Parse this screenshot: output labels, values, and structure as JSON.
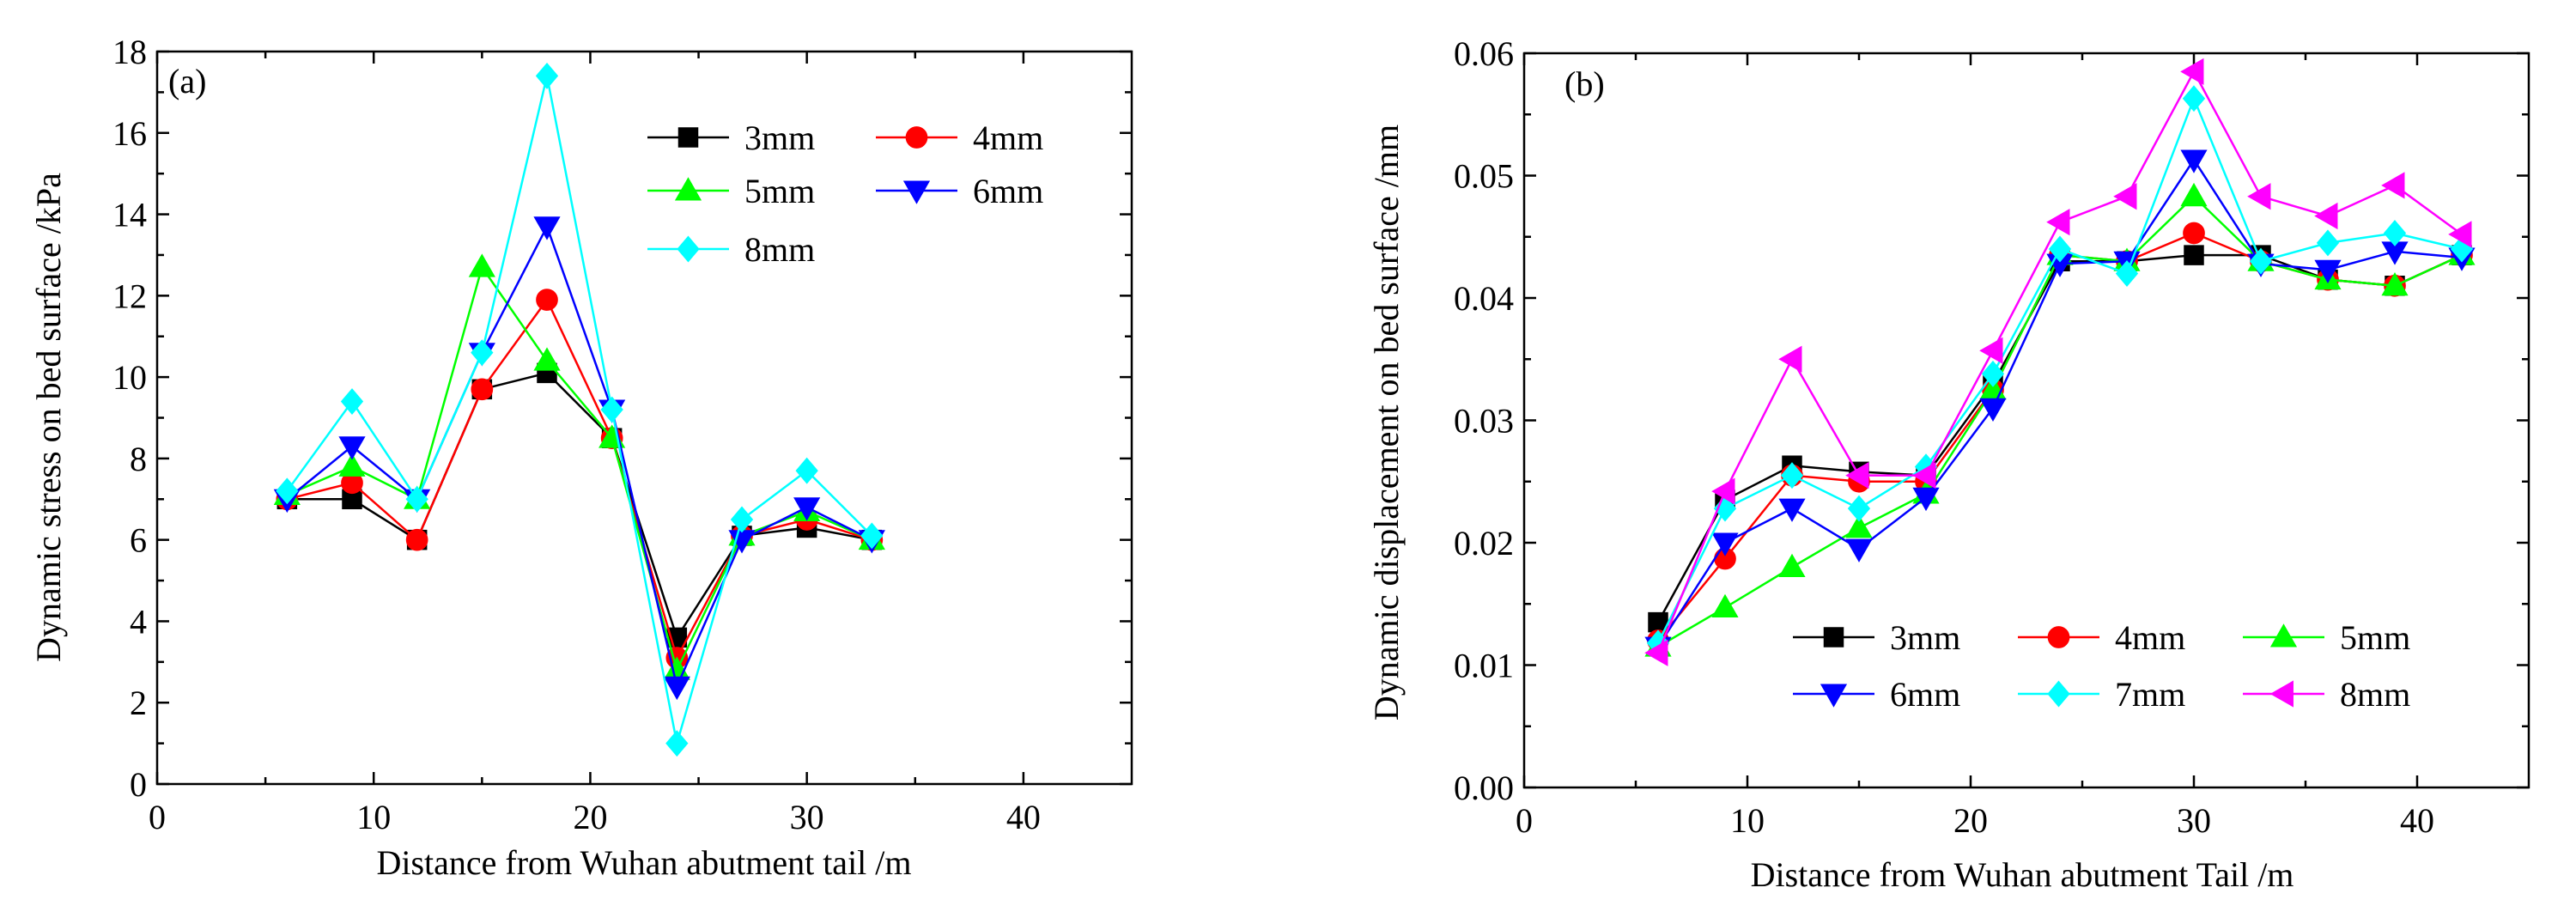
{
  "chart_data": [
    {
      "type": "line",
      "panel_label": "(a)",
      "xlabel": "Distance from Wuhan abutment tail /m",
      "ylabel": "Dynamic stress on bed surface /kPa",
      "xlim": [
        0,
        45
      ],
      "ylim": [
        0,
        18
      ],
      "xticks": [
        0,
        10,
        20,
        30,
        40
      ],
      "xtick_labels": [
        "0",
        "10",
        "20",
        "30",
        "40"
      ],
      "yticks": [
        0,
        2,
        4,
        6,
        8,
        10,
        12,
        14,
        16,
        18
      ],
      "ytick_labels": [
        "0",
        "2",
        "4",
        "6",
        "8",
        "10",
        "12",
        "14",
        "16",
        "18"
      ],
      "legend_position": "top-right",
      "legend_columns": 2,
      "x": [
        6,
        9,
        12,
        15,
        18,
        21,
        24,
        27,
        30,
        33
      ],
      "series": [
        {
          "name": "3mm",
          "color": "#000000",
          "marker": "square",
          "values": [
            7.0,
            7.0,
            6.0,
            9.7,
            10.1,
            8.5,
            3.6,
            6.1,
            6.3,
            6.0
          ]
        },
        {
          "name": "4mm",
          "color": "#ff0000",
          "marker": "circle",
          "values": [
            7.0,
            7.4,
            6.0,
            9.7,
            11.9,
            8.5,
            3.1,
            6.1,
            6.5,
            6.0
          ]
        },
        {
          "name": "5mm",
          "color": "#00ff00",
          "marker": "triangle-up",
          "values": [
            7.1,
            7.8,
            7.0,
            12.7,
            10.4,
            8.5,
            2.8,
            6.1,
            6.7,
            6.0
          ]
        },
        {
          "name": "6mm",
          "color": "#0000ff",
          "marker": "triangle-down",
          "values": [
            7.0,
            8.3,
            7.0,
            10.6,
            13.7,
            9.2,
            2.4,
            6.0,
            6.8,
            6.0
          ]
        },
        {
          "name": "8mm",
          "color": "#00ffff",
          "marker": "diamond",
          "values": [
            7.2,
            9.4,
            7.0,
            10.6,
            17.4,
            9.2,
            1.0,
            6.5,
            7.7,
            6.1
          ]
        }
      ]
    },
    {
      "type": "line",
      "panel_label": "(b)",
      "xlabel": "Distance from Wuhan abutment Tail /m",
      "ylabel": "Dynamic displacement on bed surface /mm",
      "xlim": [
        0,
        45
      ],
      "ylim": [
        0,
        0.06
      ],
      "xticks": [
        0,
        10,
        20,
        30,
        40
      ],
      "xtick_labels": [
        "0",
        "10",
        "20",
        "30",
        "40"
      ],
      "yticks": [
        0,
        0.01,
        0.02,
        0.03,
        0.04,
        0.05,
        0.06
      ],
      "ytick_labels": [
        "0.00",
        "0.01",
        "0.02",
        "0.03",
        "0.04",
        "0.05",
        "0.06"
      ],
      "legend_position": "bottom-right",
      "legend_columns": 3,
      "x": [
        6,
        9,
        12,
        15,
        18,
        21,
        24,
        27,
        30,
        33,
        36,
        39,
        42
      ],
      "series": [
        {
          "name": "3mm",
          "color": "#000000",
          "marker": "square",
          "values": [
            0.0135,
            0.0235,
            0.0263,
            0.0258,
            0.0255,
            0.033,
            0.043,
            0.043,
            0.0435,
            0.0435,
            0.0415,
            0.041,
            0.0435
          ]
        },
        {
          "name": "4mm",
          "color": "#ff0000",
          "marker": "circle",
          "values": [
            0.012,
            0.0187,
            0.0255,
            0.025,
            0.025,
            0.0325,
            0.0435,
            0.043,
            0.0453,
            0.043,
            0.0415,
            0.041,
            0.0435
          ]
        },
        {
          "name": "5mm",
          "color": "#00ff00",
          "marker": "triangle-up",
          "values": [
            0.0115,
            0.0147,
            0.018,
            0.0212,
            0.024,
            0.0325,
            0.0435,
            0.043,
            0.0483,
            0.043,
            0.0415,
            0.041,
            0.0435
          ]
        },
        {
          "name": "6mm",
          "color": "#0000ff",
          "marker": "triangle-down",
          "values": [
            0.0115,
            0.02,
            0.0228,
            0.0195,
            0.0237,
            0.031,
            0.0428,
            0.043,
            0.0513,
            0.0428,
            0.0423,
            0.0438,
            0.0433
          ]
        },
        {
          "name": "7mm",
          "color": "#00ffff",
          "marker": "diamond",
          "values": [
            0.0118,
            0.0228,
            0.0255,
            0.0228,
            0.0262,
            0.0338,
            0.044,
            0.042,
            0.0563,
            0.043,
            0.0445,
            0.0453,
            0.044
          ]
        },
        {
          "name": "8mm",
          "color": "#ff00ff",
          "marker": "triangle-left",
          "values": [
            0.011,
            0.0242,
            0.035,
            0.0255,
            0.0255,
            0.0357,
            0.0462,
            0.0483,
            0.0585,
            0.0483,
            0.0467,
            0.0492,
            0.0452
          ]
        }
      ]
    }
  ]
}
